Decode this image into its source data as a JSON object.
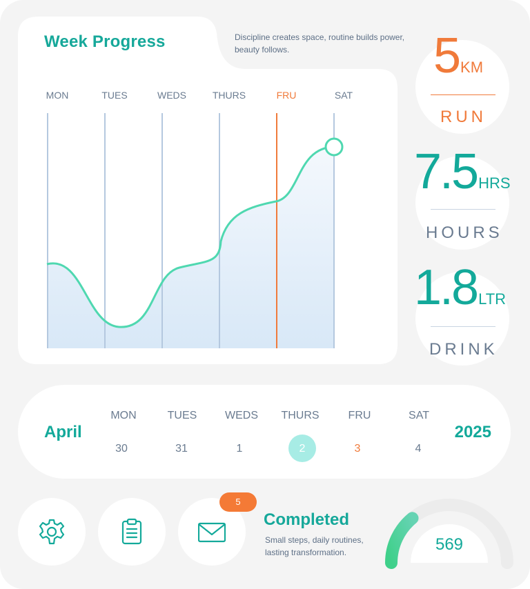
{
  "week": {
    "title": "Week Progress",
    "quote": "Discipline creates space, routine builds power, beauty follows.",
    "days": [
      "MON",
      "TUES",
      "WEDS",
      "THURS",
      "FRU",
      "SAT"
    ],
    "active_day_index": 4
  },
  "stats": [
    {
      "value": "5",
      "unit": "KM",
      "name": "RUN",
      "color": "#f07a3a"
    },
    {
      "value": "7.5",
      "unit": "HRS",
      "name": "HOURS",
      "color": "#13a99a"
    },
    {
      "value": "1.8",
      "unit": "LTR",
      "name": "DRINK",
      "color": "#13a99a"
    }
  ],
  "calendar": {
    "month": "April",
    "year": "2025",
    "days": [
      {
        "name": "MON",
        "date": "30"
      },
      {
        "name": "TUES",
        "date": "31"
      },
      {
        "name": "WEDS",
        "date": "1"
      },
      {
        "name": "THURS",
        "date": "2"
      },
      {
        "name": "FRU",
        "date": "3"
      },
      {
        "name": "SAT",
        "date": "4"
      }
    ],
    "selected_index": 3,
    "active_index": 4
  },
  "notifications": {
    "badge_count": "5"
  },
  "completed": {
    "title": "Completed",
    "text": "Small steps, daily routines, lasting transformation.",
    "value": "569",
    "fraction": 0.28
  },
  "icons": [
    "gear-icon",
    "clipboard-icon",
    "mail-icon"
  ],
  "colors": {
    "accent": "#13a99a",
    "highlight": "#f07a3a",
    "curve": "#4fd8b0"
  }
}
